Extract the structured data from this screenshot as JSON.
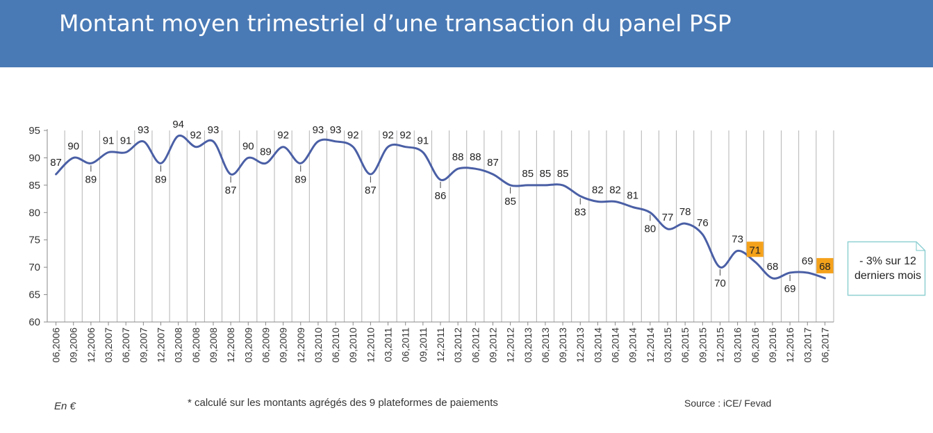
{
  "title": "Montant moyen trimestriel d’une transaction du panel PSP",
  "footer": {
    "unit": "En €",
    "note": "* calculé sur les montants agrégés des 9 plateformes de paiements",
    "source": "Source : iCE/ Fevad"
  },
  "callout": {
    "text": "- 3% sur 12 derniers mois"
  },
  "colors": {
    "header": "#4a7ab5",
    "line": "#4a5fa5",
    "highlight": "#f5a21b"
  },
  "chart_data": {
    "type": "line",
    "title": "",
    "xlabel": "",
    "ylabel": "",
    "ylim": [
      60,
      95
    ],
    "yticks": [
      "60",
      "65",
      "70",
      "75",
      "80",
      "85",
      "90",
      "95"
    ],
    "grid": "vertical",
    "categories": [
      "06,2006",
      "09,2006",
      "12,2006",
      "03,2007",
      "06,2007",
      "09,2007",
      "12,2007",
      "03,2008",
      "06,2008",
      "09,2008",
      "12,2008",
      "03,2009",
      "06,2009",
      "09,2009",
      "12,2009",
      "03,2010",
      "06,2010",
      "09,2010",
      "12,2010",
      "03,2011",
      "06,2011",
      "09,2011",
      "12,2011",
      "03,2012",
      "06,2012",
      "09,2012",
      "12,2012",
      "03,2013",
      "06,2013",
      "09,2013",
      "12,2013",
      "03,2014",
      "06,2014",
      "09,2014",
      "12,2014",
      "03,2015",
      "06,2015",
      "09,2015",
      "12,2015",
      "03,2016",
      "06,2016",
      "09,2016",
      "12,2016",
      "03,2017",
      "06,2017"
    ],
    "values": [
      87,
      90,
      89,
      91,
      91,
      93,
      89,
      94,
      92,
      93,
      87,
      90,
      89,
      92,
      89,
      93,
      93,
      92,
      87,
      92,
      92,
      91,
      86,
      88,
      88,
      87,
      85,
      85,
      85,
      85,
      83,
      82,
      82,
      81,
      80,
      77,
      78,
      76,
      70,
      73,
      71,
      68,
      69,
      69,
      68
    ],
    "label_below": [
      false,
      false,
      true,
      false,
      false,
      false,
      true,
      false,
      false,
      false,
      true,
      false,
      false,
      false,
      true,
      false,
      false,
      false,
      true,
      false,
      false,
      false,
      true,
      false,
      false,
      false,
      true,
      false,
      false,
      false,
      true,
      false,
      false,
      false,
      true,
      false,
      false,
      false,
      true,
      false,
      false,
      false,
      true,
      false,
      false
    ],
    "highlighted": [
      "06,2016",
      "06,2017"
    ]
  }
}
